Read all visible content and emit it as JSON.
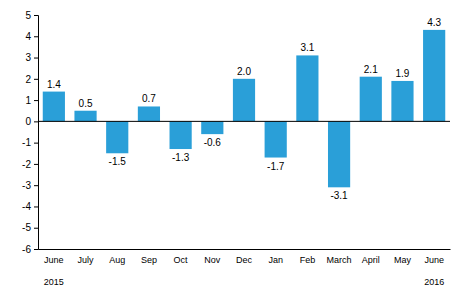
{
  "chart_data": {
    "type": "bar",
    "categories": [
      "June",
      "July",
      "Aug",
      "Sep",
      "Oct",
      "Nov",
      "Dec",
      "Jan",
      "Feb",
      "March",
      "April",
      "May",
      "June"
    ],
    "values": [
      1.4,
      0.5,
      -1.5,
      0.7,
      -1.3,
      -0.6,
      2.0,
      -1.7,
      3.1,
      -3.1,
      2.1,
      1.9,
      4.3
    ],
    "value_labels": [
      "1.4",
      "0.5",
      "-1.5",
      "0.7",
      "-1.3",
      "-0.6",
      "2.0",
      "-1.7",
      "3.1",
      "-3.1",
      "2.1",
      "1.9",
      "4.3"
    ],
    "color": "#2a9fd8",
    "ylim": [
      -6,
      5
    ],
    "yticks": [
      -6,
      -5,
      -4,
      -3,
      -2,
      -1,
      0,
      1,
      2,
      3,
      4,
      5
    ],
    "grid": false,
    "data_labels": true,
    "annotations": [
      {
        "text": "2015",
        "x": 0
      },
      {
        "text": "2016",
        "x": 12
      }
    ]
  }
}
